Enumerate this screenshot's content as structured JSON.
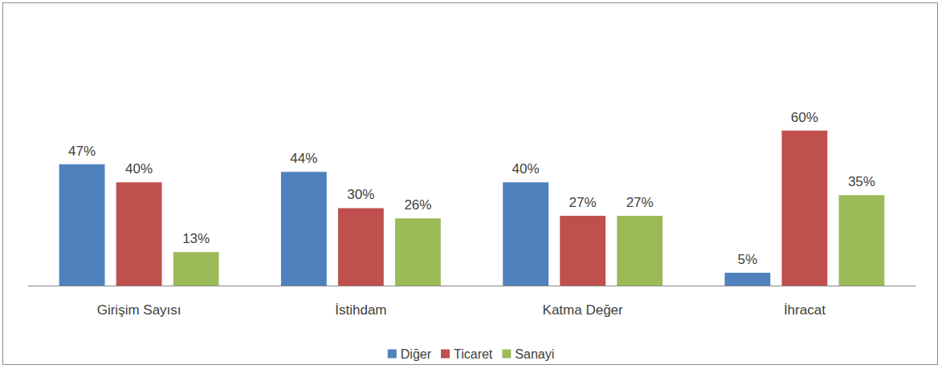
{
  "chart_data": {
    "type": "bar",
    "categories": [
      "Girişim Sayısı",
      "İstihdam",
      "Katma Değer",
      "İhracat"
    ],
    "series": [
      {
        "name": "Diğer",
        "color": "#4f81bd",
        "values": [
          47,
          44,
          40,
          5
        ],
        "value_labels": [
          "47%",
          "44%",
          "40%",
          "5%"
        ]
      },
      {
        "name": "Ticaret",
        "color": "#c0504d",
        "values": [
          40,
          30,
          27,
          60
        ],
        "value_labels": [
          "40%",
          "30%",
          "27%",
          "60%"
        ]
      },
      {
        "name": "Sanayi",
        "color": "#9bbb59",
        "values": [
          13,
          26,
          27,
          35
        ],
        "value_labels": [
          "13%",
          "26%",
          "27%",
          "35%"
        ]
      }
    ],
    "ylim": [
      0,
      100
    ],
    "grid": false,
    "legend": "bottom",
    "data_labels": true,
    "tick_labels": "x"
  }
}
